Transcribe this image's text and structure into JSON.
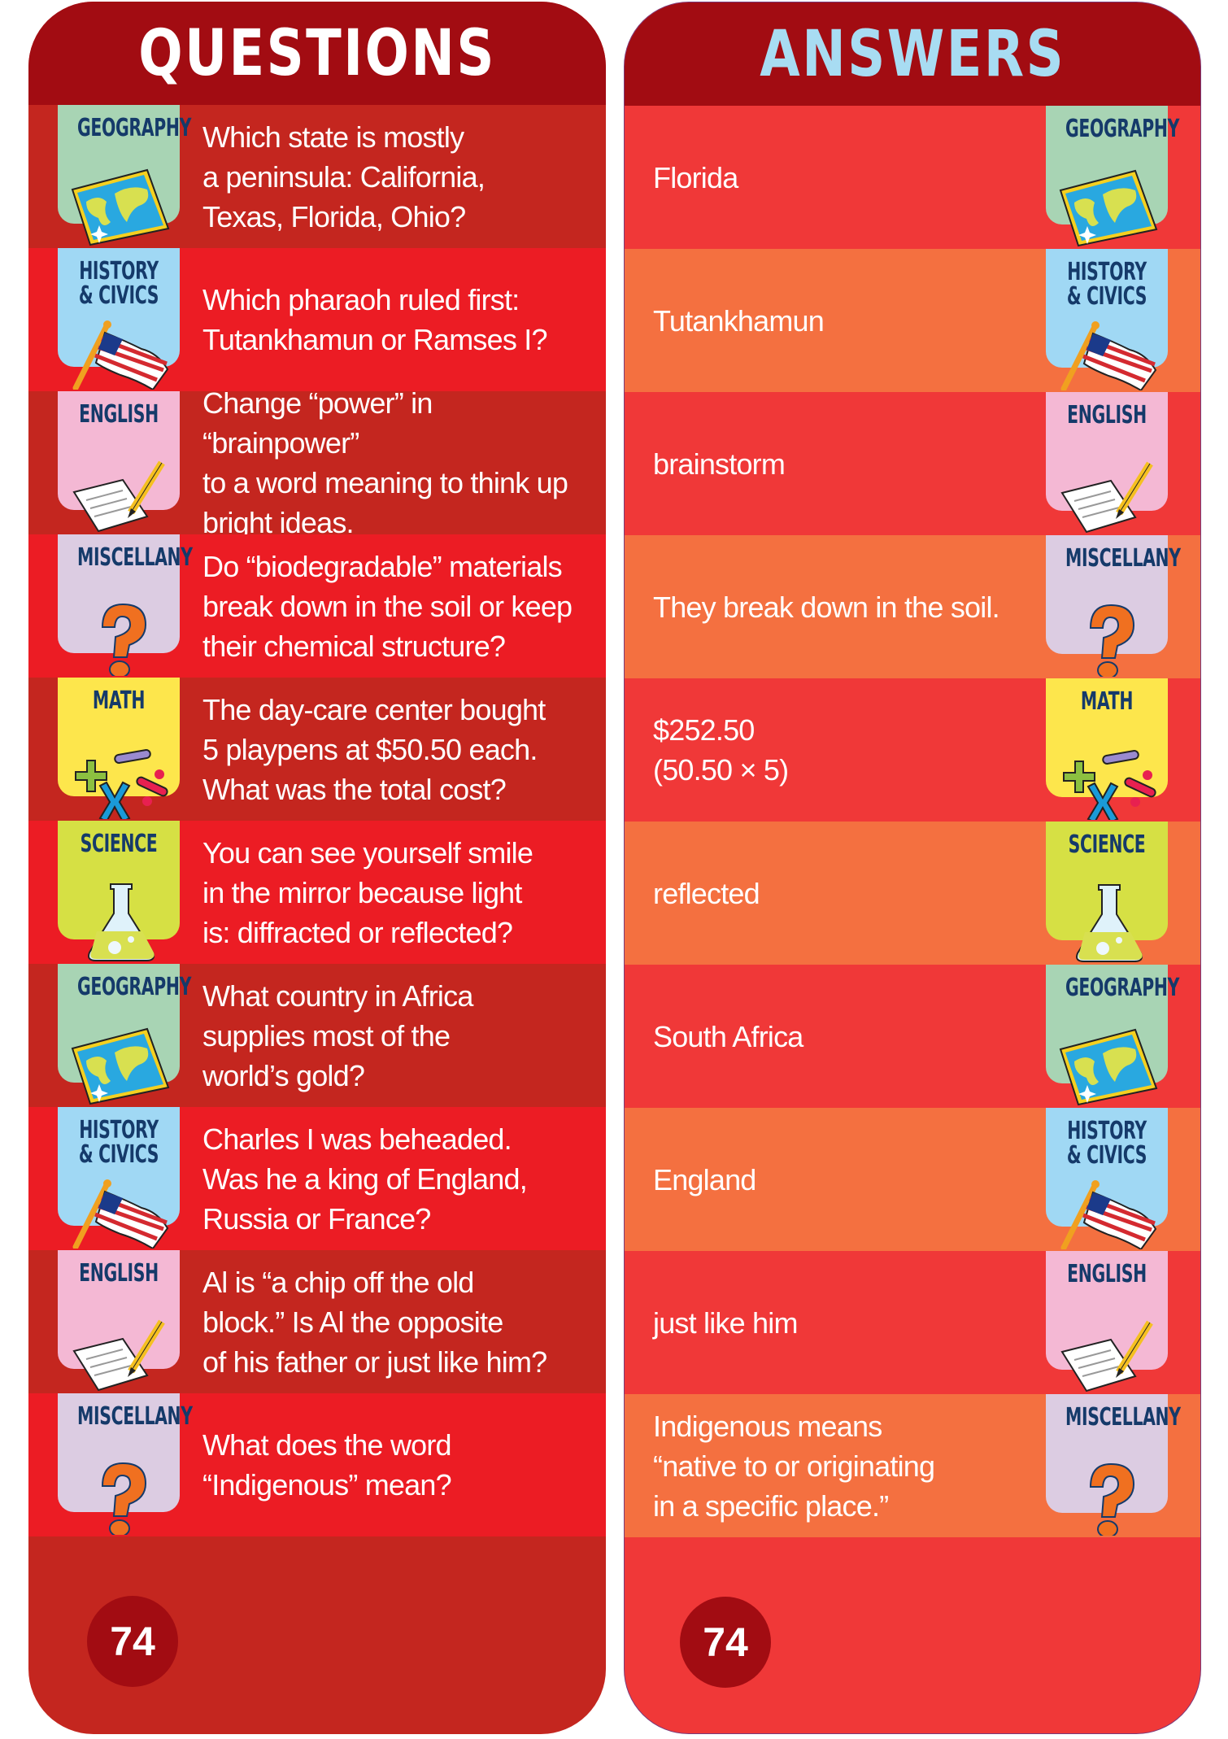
{
  "questions_title": "QUESTIONS",
  "answers_title": "ANSWERS",
  "page_number": "74",
  "colors": {
    "header": "#a20c12",
    "question_rows": [
      "#c4261f",
      "#ec1c24"
    ],
    "answer_rows": [
      "#f03838",
      "#f47040"
    ],
    "answers_title": "#a8dcf2",
    "category_text": "#153a6a"
  },
  "categories": {
    "geography": {
      "label": "GEOGRAPHY",
      "color": "#a8d4b4",
      "icon": "world-map-icon"
    },
    "history": {
      "label": "HISTORY\n& CIVICS",
      "color": "#a0d8f4",
      "icon": "american-flag-icon"
    },
    "english": {
      "label": "ENGLISH",
      "color": "#f4b8d4",
      "icon": "paper-pencil-icon"
    },
    "misc": {
      "label": "MISCELLANY",
      "color": "#dccce2",
      "icon": "question-mark-icon"
    },
    "math": {
      "label": "MATH",
      "color": "#fde64c",
      "icon": "math-symbols-icon"
    },
    "science": {
      "label": "SCIENCE",
      "color": "#d6e044",
      "icon": "flask-icon"
    }
  },
  "items": [
    {
      "category": "geography",
      "question": "Which state is mostly\na peninsula: California,\nTexas, Florida, Ohio?",
      "answer": "Florida"
    },
    {
      "category": "history",
      "question": "Which pharaoh ruled first:\nTutankhamun or Ramses I?",
      "answer": "Tutankhamun"
    },
    {
      "category": "english",
      "question": "Change “power” in “brainpower”\nto a word meaning to think up\nbright ideas.",
      "answer": "brainstorm"
    },
    {
      "category": "misc",
      "question": "Do “biodegradable” materials\nbreak down in the soil or keep\ntheir chemical structure?",
      "answer": "They break down in the soil."
    },
    {
      "category": "math",
      "question": "The day-care center bought\n5 playpens at $50.50 each.\nWhat was the total cost?",
      "answer": "$252.50\n(50.50 × 5)"
    },
    {
      "category": "science",
      "question": "You can see yourself smile\nin the mirror because light\nis: diffracted or reflected?",
      "answer": "reflected"
    },
    {
      "category": "geography",
      "question": "What country in Africa\nsupplies most of the\nworld’s gold?",
      "answer": "South Africa"
    },
    {
      "category": "history",
      "question": "Charles I was beheaded.\nWas he a king of England,\nRussia or France?",
      "answer": "England"
    },
    {
      "category": "english",
      "question": "Al is “a chip off the old\nblock.” Is Al the opposite\nof his father or just like him?",
      "answer": "just like him"
    },
    {
      "category": "misc",
      "question": "What does the word\n“Indigenous” mean?",
      "answer": "Indigenous means\n“native to or originating\nin a specific place.”"
    }
  ]
}
